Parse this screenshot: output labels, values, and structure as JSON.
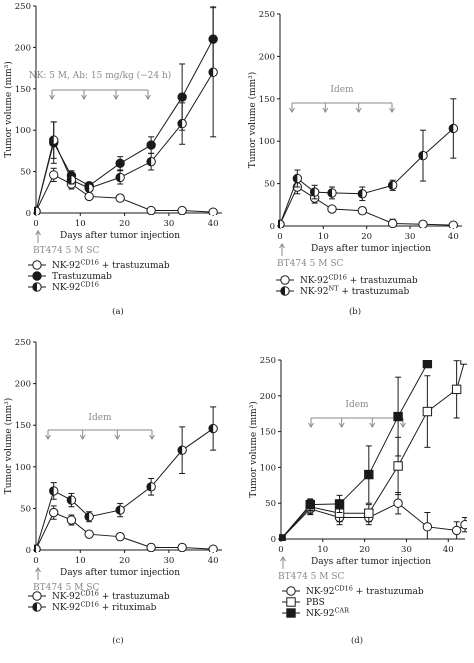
{
  "chart_data": [
    {
      "type": "line",
      "panel": "(a)",
      "xlabel": "Days after tumor injection",
      "ylabel": "Tumor volume (mm³)",
      "xlim": [
        0,
        42
      ],
      "ylim": [
        0,
        250
      ],
      "xticks": [
        0,
        10,
        20,
        30,
        40
      ],
      "yticks": [
        0,
        50,
        100,
        150,
        200,
        250
      ],
      "annotation": "NK: 5 M, Ab: 15 mg/kg (−24 h)",
      "treatment_days": [
        4,
        11,
        18,
        26
      ],
      "injection_label": "BT474 5 M SC",
      "series": [
        {
          "name": "NK-92CD16 + trastuzumab",
          "marker": "open-circle",
          "x": [
            0,
            4,
            8,
            12,
            19,
            26,
            33,
            40
          ],
          "y": [
            2,
            46,
            35,
            20,
            18,
            3,
            3,
            1
          ],
          "err": [
            2,
            8,
            6,
            3,
            4,
            3,
            3,
            1
          ]
        },
        {
          "name": "Trastuzumab",
          "marker": "filled-circle",
          "x": [
            0,
            4,
            8,
            12,
            19,
            26,
            33,
            40
          ],
          "y": [
            2,
            85,
            45,
            33,
            60,
            82,
            140,
            210
          ],
          "err": [
            2,
            25,
            6,
            4,
            8,
            10,
            40,
            40
          ]
        },
        {
          "name": "NK-92CD16",
          "marker": "half-circle",
          "x": [
            0,
            4,
            8,
            12,
            19,
            26,
            33,
            40
          ],
          "y": [
            2,
            88,
            40,
            30,
            43,
            62,
            108,
            170
          ],
          "err": [
            2,
            22,
            5,
            4,
            8,
            10,
            25,
            78
          ]
        }
      ]
    },
    {
      "type": "line",
      "panel": "(b)",
      "xlabel": "Days after tumor injection",
      "ylabel": "Tumor volume (mm³)",
      "xlim": [
        0,
        42
      ],
      "ylim": [
        0,
        250
      ],
      "xticks": [
        0,
        10,
        20,
        30,
        40
      ],
      "yticks": [
        0,
        50,
        100,
        150,
        200,
        250
      ],
      "annotation": "Idem",
      "treatment_days": [
        4,
        11,
        18,
        26
      ],
      "injection_label": "BT474 5 M SC",
      "series": [
        {
          "name": "NK-92CD16 + trastuzumab",
          "marker": "open-circle",
          "x": [
            0,
            4,
            8,
            12,
            19,
            26,
            33,
            40
          ],
          "y": [
            2,
            46,
            33,
            20,
            18,
            3,
            2,
            1
          ],
          "err": [
            2,
            8,
            6,
            3,
            4,
            5,
            3,
            1
          ]
        },
        {
          "name": "NK-92NT + trastuzumab",
          "marker": "half-circle",
          "x": [
            0,
            4,
            8,
            12,
            19,
            26,
            33,
            40
          ],
          "y": [
            2,
            56,
            40,
            39,
            38,
            48,
            83,
            115
          ],
          "err": [
            2,
            10,
            8,
            7,
            8,
            6,
            30,
            35
          ]
        }
      ]
    },
    {
      "type": "line",
      "panel": "(c)",
      "xlabel": "Days after tumor injection",
      "ylabel": "Tumor volume (mm³)",
      "xlim": [
        0,
        42
      ],
      "ylim": [
        0,
        250
      ],
      "xticks": [
        0,
        10,
        20,
        30,
        40
      ],
      "yticks": [
        0,
        50,
        100,
        150,
        200,
        250
      ],
      "annotation": "Idem",
      "treatment_days": [
        4,
        11,
        18,
        26
      ],
      "injection_label": "BT474 5 M SC",
      "series": [
        {
          "name": "NK-92CD16 + trastuzumab",
          "marker": "open-circle",
          "x": [
            0,
            4,
            8,
            12,
            19,
            26,
            33,
            40
          ],
          "y": [
            1,
            45,
            36,
            19,
            16,
            3,
            3,
            1
          ],
          "err": [
            1,
            8,
            6,
            3,
            4,
            3,
            3,
            1
          ]
        },
        {
          "name": "NK-92CD16 + rituximab",
          "marker": "half-circle",
          "x": [
            0,
            4,
            8,
            12,
            19,
            26,
            33,
            40
          ],
          "y": [
            1,
            71,
            60,
            40,
            48,
            76,
            120,
            146
          ],
          "err": [
            1,
            10,
            8,
            6,
            8,
            10,
            28,
            26
          ]
        }
      ]
    },
    {
      "type": "line",
      "panel": "(d)",
      "xlabel": "Days after tumor injection",
      "ylabel": "Tumor volume (mm³)",
      "xlim": [
        0,
        44
      ],
      "ylim": [
        0,
        250
      ],
      "xticks": [
        0,
        10,
        20,
        30,
        40
      ],
      "yticks": [
        0,
        50,
        100,
        150,
        200,
        250
      ],
      "annotation": "Idem",
      "treatment_days": [
        7,
        14,
        21,
        28
      ],
      "injection_label": "BT474 5 M SC",
      "series": [
        {
          "name": "NK-92CD16 + trastuzumab",
          "marker": "open-circle",
          "x": [
            0,
            7,
            14,
            21,
            28,
            35,
            42,
            44
          ],
          "y": [
            0,
            42,
            30,
            30,
            50,
            17,
            12,
            20
          ],
          "err": [
            0,
            8,
            10,
            10,
            15,
            20,
            12,
            10
          ]
        },
        {
          "name": "PBS",
          "marker": "open-square",
          "x": [
            0,
            7,
            14,
            21,
            28,
            35,
            42,
            44
          ],
          "y": [
            0,
            45,
            36,
            36,
            102,
            178,
            209,
            250
          ],
          "err": [
            0,
            10,
            12,
            12,
            40,
            50,
            40,
            0
          ]
        },
        {
          "name": "NK-92CAR",
          "marker": "filled-square",
          "x": [
            0,
            7,
            14,
            21,
            28,
            35
          ],
          "y": [
            0,
            48,
            49,
            90,
            171,
            245
          ],
          "err": [
            0,
            8,
            12,
            40,
            55,
            0
          ]
        }
      ]
    }
  ]
}
